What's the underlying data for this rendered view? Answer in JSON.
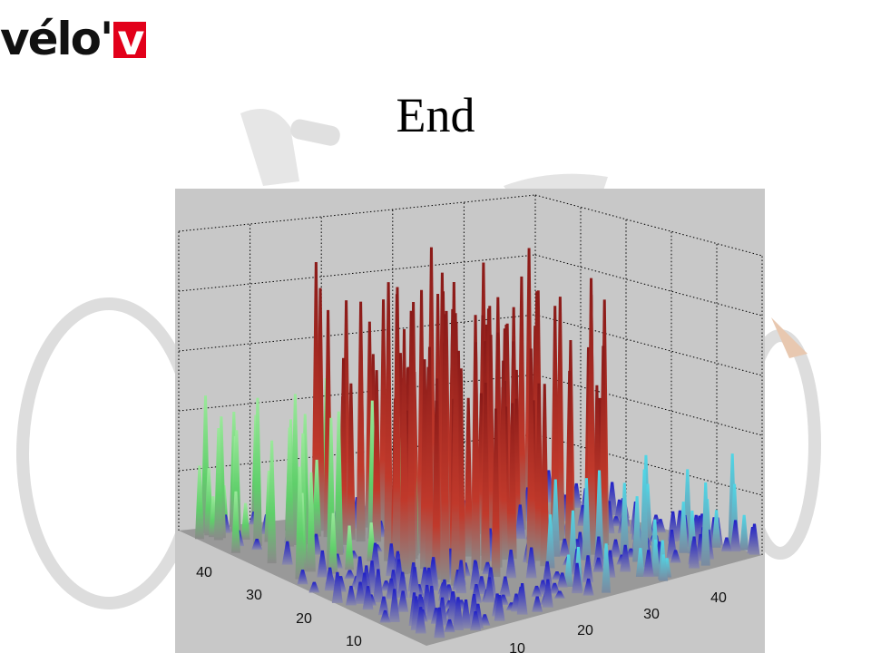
{
  "logo": {
    "text": "vélo'",
    "mark": "v"
  },
  "title": "End",
  "plot": {
    "left_axis_ticks": [
      40,
      30,
      20,
      10
    ],
    "right_axis_ticks": [
      10,
      20,
      30,
      40
    ]
  }
}
